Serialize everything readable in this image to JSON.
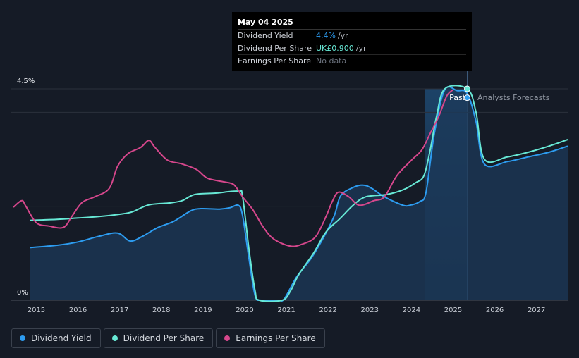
{
  "tooltip": {
    "date": "May 04 2025",
    "rows": [
      {
        "label": "Dividend Yield",
        "value": "4.4%",
        "unit": "/yr"
      },
      {
        "label": "Dividend Per Share",
        "value": "UK£0.900",
        "unit": "/yr"
      },
      {
        "label": "Earnings Per Share",
        "value": "No data",
        "unit": ""
      }
    ]
  },
  "markers": {
    "past": "Past",
    "forecast": "Analysts Forecasts"
  },
  "legend": [
    {
      "label": "Dividend Yield",
      "color": "#2d9cf0"
    },
    {
      "label": "Dividend Per Share",
      "color": "#67e8d5"
    },
    {
      "label": "Earnings Per Share",
      "color": "#d6478c"
    }
  ],
  "colors": {
    "background": "#151b26",
    "grid": "#2b313c",
    "forecast_band": "#1b3450"
  },
  "chart_data": {
    "type": "line",
    "title": "",
    "xlabel": "",
    "ylabel": "",
    "y_tick_labels": [
      {
        "value": 4.5,
        "label": "4.5%"
      },
      {
        "value": 0,
        "label": "0%"
      }
    ],
    "x_tick_labels": [
      "2015",
      "2016",
      "2017",
      "2018",
      "2019",
      "2020",
      "2021",
      "2022",
      "2023",
      "2024",
      "2025",
      "2026",
      "2027"
    ],
    "xlim": [
      2014.4,
      2027.75
    ],
    "ylim": [
      0,
      4.5
    ],
    "today": 2025.34,
    "forecast_band_start": 2024.32,
    "series": [
      {
        "name": "Dividend Yield",
        "color": "#2d9cf0",
        "fill": true,
        "points": [
          [
            2014.85,
            1.12
          ],
          [
            2015.5,
            1.17
          ],
          [
            2016.0,
            1.24
          ],
          [
            2016.5,
            1.36
          ],
          [
            2016.95,
            1.43
          ],
          [
            2017.25,
            1.26
          ],
          [
            2017.55,
            1.36
          ],
          [
            2017.9,
            1.54
          ],
          [
            2018.3,
            1.68
          ],
          [
            2018.7,
            1.9
          ],
          [
            2018.95,
            1.95
          ],
          [
            2019.4,
            1.94
          ],
          [
            2019.65,
            1.97
          ],
          [
            2019.85,
            2.02
          ],
          [
            2019.95,
            1.8
          ],
          [
            2020.1,
            0.9
          ],
          [
            2020.25,
            0.1
          ],
          [
            2020.4,
            0.0
          ],
          [
            2020.8,
            0.0
          ],
          [
            2020.95,
            0.03
          ],
          [
            2021.25,
            0.5
          ],
          [
            2021.6,
            0.9
          ],
          [
            2021.9,
            1.35
          ],
          [
            2022.15,
            1.8
          ],
          [
            2022.3,
            2.22
          ],
          [
            2022.6,
            2.4
          ],
          [
            2022.85,
            2.45
          ],
          [
            2023.05,
            2.38
          ],
          [
            2023.35,
            2.2
          ],
          [
            2023.8,
            2.02
          ],
          [
            2024.0,
            2.03
          ],
          [
            2024.2,
            2.1
          ],
          [
            2024.35,
            2.3
          ],
          [
            2024.55,
            3.55
          ],
          [
            2024.8,
            4.48
          ],
          [
            2025.1,
            4.46
          ],
          [
            2025.34,
            4.4
          ],
          [
            2025.55,
            3.8
          ],
          [
            2025.75,
            2.9
          ],
          [
            2026.3,
            2.95
          ],
          [
            2026.8,
            3.05
          ],
          [
            2027.3,
            3.15
          ],
          [
            2027.75,
            3.28
          ]
        ]
      },
      {
        "name": "Dividend Per Share",
        "color": "#67e8d5",
        "fill": false,
        "points": [
          [
            2014.85,
            1.7
          ],
          [
            2015.5,
            1.72
          ],
          [
            2016.0,
            1.75
          ],
          [
            2016.5,
            1.78
          ],
          [
            2017.0,
            1.83
          ],
          [
            2017.3,
            1.88
          ],
          [
            2017.7,
            2.03
          ],
          [
            2018.2,
            2.07
          ],
          [
            2018.5,
            2.12
          ],
          [
            2018.8,
            2.25
          ],
          [
            2019.3,
            2.28
          ],
          [
            2019.85,
            2.32
          ],
          [
            2019.95,
            2.2
          ],
          [
            2020.1,
            1.1
          ],
          [
            2020.25,
            0.2
          ],
          [
            2020.35,
            0.0
          ],
          [
            2020.9,
            0.0
          ],
          [
            2021.1,
            0.2
          ],
          [
            2021.3,
            0.55
          ],
          [
            2021.65,
            1.0
          ],
          [
            2021.95,
            1.45
          ],
          [
            2022.3,
            1.75
          ],
          [
            2022.6,
            2.02
          ],
          [
            2022.9,
            2.2
          ],
          [
            2023.4,
            2.25
          ],
          [
            2023.8,
            2.35
          ],
          [
            2024.1,
            2.5
          ],
          [
            2024.3,
            2.65
          ],
          [
            2024.45,
            3.2
          ],
          [
            2024.6,
            3.9
          ],
          [
            2024.8,
            4.5
          ],
          [
            2025.34,
            4.5
          ],
          [
            2025.55,
            4.0
          ],
          [
            2025.75,
            3.0
          ],
          [
            2026.3,
            3.05
          ],
          [
            2026.8,
            3.15
          ],
          [
            2027.3,
            3.28
          ],
          [
            2027.75,
            3.42
          ]
        ]
      },
      {
        "name": "Earnings Per Share",
        "color": "#d6478c",
        "fill": false,
        "points": [
          [
            2014.45,
            1.98
          ],
          [
            2014.65,
            2.12
          ],
          [
            2014.75,
            2.0
          ],
          [
            2015.0,
            1.65
          ],
          [
            2015.3,
            1.58
          ],
          [
            2015.65,
            1.55
          ],
          [
            2015.85,
            1.78
          ],
          [
            2016.1,
            2.08
          ],
          [
            2016.4,
            2.2
          ],
          [
            2016.75,
            2.38
          ],
          [
            2016.95,
            2.85
          ],
          [
            2017.2,
            3.12
          ],
          [
            2017.5,
            3.25
          ],
          [
            2017.7,
            3.4
          ],
          [
            2017.85,
            3.25
          ],
          [
            2018.15,
            2.98
          ],
          [
            2018.5,
            2.9
          ],
          [
            2018.85,
            2.78
          ],
          [
            2019.1,
            2.6
          ],
          [
            2019.5,
            2.52
          ],
          [
            2019.7,
            2.48
          ],
          [
            2019.8,
            2.4
          ],
          [
            2019.95,
            2.2
          ],
          [
            2020.2,
            1.92
          ],
          [
            2020.45,
            1.55
          ],
          [
            2020.7,
            1.3
          ],
          [
            2021.1,
            1.15
          ],
          [
            2021.4,
            1.2
          ],
          [
            2021.7,
            1.35
          ],
          [
            2021.95,
            1.78
          ],
          [
            2022.1,
            2.1
          ],
          [
            2022.25,
            2.3
          ],
          [
            2022.5,
            2.2
          ],
          [
            2022.75,
            2.02
          ],
          [
            2023.1,
            2.12
          ],
          [
            2023.35,
            2.2
          ],
          [
            2023.65,
            2.65
          ],
          [
            2024.0,
            2.98
          ],
          [
            2024.25,
            3.2
          ],
          [
            2024.45,
            3.55
          ],
          [
            2024.65,
            3.9
          ],
          [
            2024.85,
            4.35
          ],
          [
            2025.0,
            4.48
          ]
        ]
      }
    ]
  }
}
